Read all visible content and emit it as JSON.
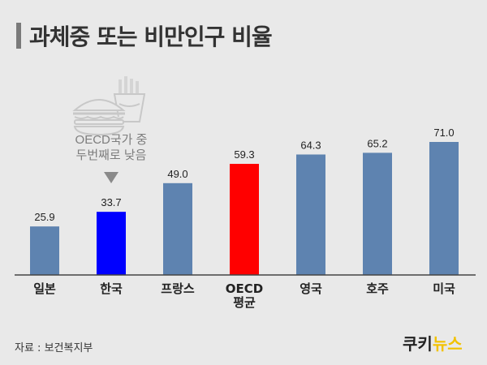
{
  "title": "과체중 또는 비만인구 비율",
  "source": "자료 : 보건복지부",
  "logo": {
    "part1": "쿠키",
    "part2": "뉴스"
  },
  "annotation": {
    "line1": "OECD국가 중",
    "line2": "두번째로 낮음"
  },
  "colors": {
    "default_bar": "#5e83b0",
    "highlight_korea": "#0000ff",
    "highlight_oecd": "#ff0000",
    "axis": "#444444",
    "logo_accent": "#f2c200"
  },
  "icons": [
    "hamburger-icon",
    "french-fries-icon",
    "down-arrow-icon"
  ],
  "chart_data": {
    "type": "bar",
    "title": "과체중 또는 비만인구 비율",
    "categories": [
      "일본",
      "한국",
      "프랑스",
      "OECD\n평균",
      "영국",
      "호주",
      "미국"
    ],
    "values": [
      25.9,
      33.7,
      49.0,
      59.3,
      64.3,
      65.2,
      71.0
    ],
    "value_labels": [
      "25.9",
      "33.7",
      "49.0",
      "59.3",
      "64.3",
      "65.2",
      "71.0"
    ],
    "highlight": {
      "한국": "#0000ff",
      "OECD\n평균": "#ff0000"
    },
    "ylim": [
      0,
      71.0
    ],
    "grid": false,
    "legend": "none",
    "xlabel": "",
    "ylabel": ""
  }
}
